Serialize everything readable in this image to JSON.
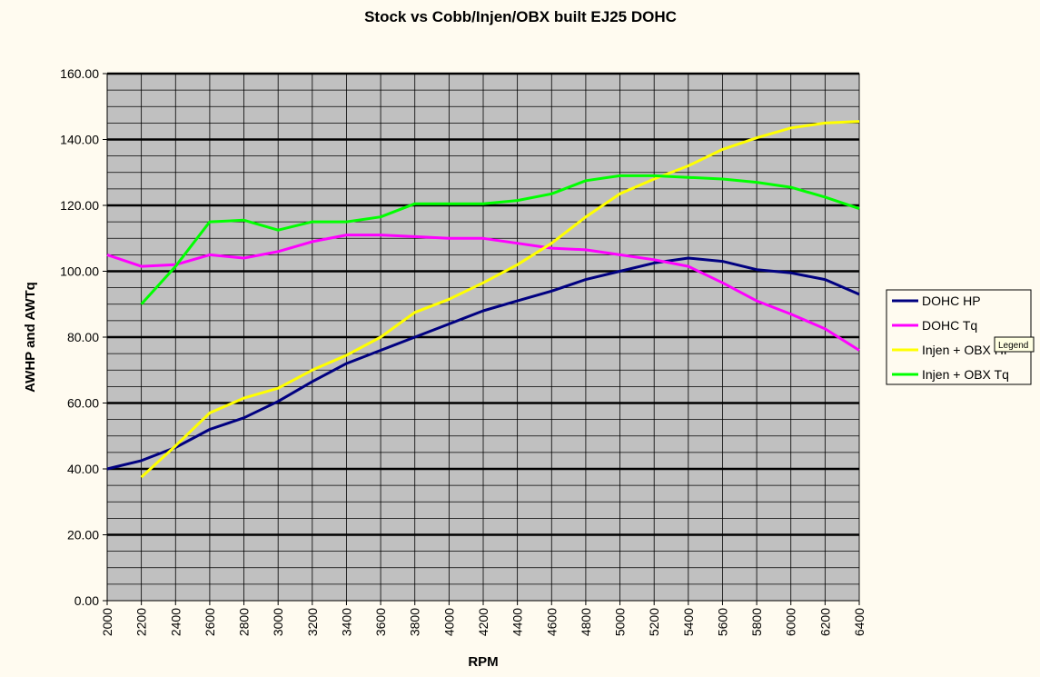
{
  "chart_data": {
    "type": "line",
    "title": "Stock vs Cobb/Injen/OBX built EJ25 DOHC",
    "xlabel": "RPM",
    "ylabel": "AWHP and AWTq",
    "x": [
      2000,
      2200,
      2400,
      2600,
      2800,
      3000,
      3200,
      3400,
      3600,
      3800,
      4000,
      4200,
      4400,
      4600,
      4800,
      5000,
      5200,
      5400,
      5600,
      5800,
      6000,
      6200,
      6400
    ],
    "x_tick_labels": [
      "2000",
      "2200",
      "2400",
      "2600",
      "2800",
      "3000",
      "3200",
      "3400",
      "3600",
      "3800",
      "4000",
      "4200",
      "4400",
      "4600",
      "4800",
      "5000",
      "5200",
      "5400",
      "5600",
      "5800",
      "6000",
      "6200",
      "6400"
    ],
    "ylim": [
      0,
      160
    ],
    "y_ticks": [
      0,
      20,
      40,
      60,
      80,
      100,
      120,
      140,
      160
    ],
    "y_tick_labels": [
      "0.00",
      "20.00",
      "40.00",
      "60.00",
      "80.00",
      "100.00",
      "120.00",
      "140.00",
      "160.00"
    ],
    "legend_position": "right",
    "grid": true,
    "plot_background": "#c0c0c0",
    "series": [
      {
        "name": "DOHC HP",
        "color": "#000080",
        "values": [
          40,
          42.5,
          46.5,
          52,
          55.5,
          60.5,
          66.5,
          72,
          76,
          80,
          84,
          88,
          91,
          94,
          97.5,
          100,
          102.5,
          104,
          103,
          100.5,
          99.5,
          97.5,
          93
        ]
      },
      {
        "name": "DOHC Tq",
        "color": "#ff00ff",
        "values": [
          105,
          101.5,
          102,
          105,
          104,
          106,
          109,
          111,
          111,
          110.5,
          110,
          110,
          108.5,
          107,
          106.5,
          105,
          103.5,
          101.5,
          96.5,
          91,
          87,
          82.5,
          76
        ]
      },
      {
        "name": "Injen + OBX HP",
        "color": "#ffff00",
        "values": [
          null,
          37.5,
          47,
          57,
          61.5,
          64.5,
          70,
          74.5,
          80,
          87.5,
          91.5,
          96.5,
          102,
          108.5,
          116.5,
          123.5,
          128,
          132,
          137,
          140.5,
          143.5,
          145,
          145.5
        ]
      },
      {
        "name": "Injen + OBX Tq",
        "color": "#00ff00",
        "values": [
          null,
          90,
          101.5,
          115,
          115.5,
          112.5,
          115,
          115,
          116.5,
          120.5,
          120.5,
          120.5,
          121.5,
          123.5,
          127.5,
          129,
          129,
          128.5,
          128,
          127,
          125.5,
          122.5,
          119
        ]
      }
    ]
  },
  "tooltip": {
    "text": "Legend"
  }
}
